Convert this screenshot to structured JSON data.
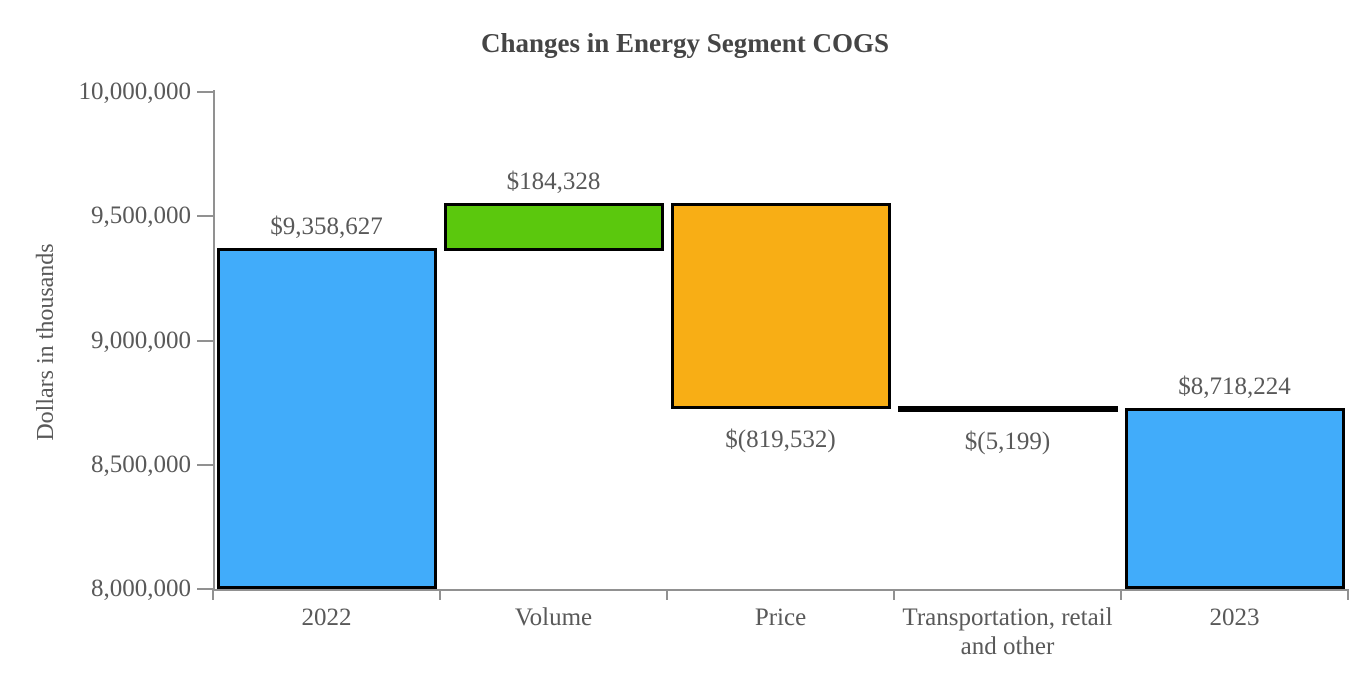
{
  "title": "Changes in Energy Segment COGS",
  "y_axis": {
    "label": "Dollars in thousands",
    "ticks": [
      "10,000,000",
      "9,500,000",
      "9,000,000",
      "8,500,000",
      "8,000,000"
    ],
    "min": 8000000,
    "max": 10000000
  },
  "x_axis": {
    "labels": [
      "2022",
      "Volume",
      "Price",
      "Transportation, retail\nand other",
      "2023"
    ]
  },
  "colors": {
    "total_bar": "#41ACFA",
    "increase_bar": "#5BC80D",
    "decrease_bar": "#F8AE15",
    "tiny_decrease_bar": "#000000",
    "bar_border": "#000000",
    "axis": "#919191",
    "label_text": "#595959",
    "title_text": "#454545"
  },
  "chart_data": {
    "type": "bar",
    "subtype": "waterfall",
    "title": "Changes in Energy Segment COGS",
    "xlabel": "",
    "ylabel": "Dollars in thousands",
    "ylim": [
      8000000,
      10000000
    ],
    "grid": false,
    "legend": false,
    "categories": [
      "2022",
      "Volume",
      "Price",
      "Transportation, retail and other",
      "2023"
    ],
    "values": [
      9358627,
      184328,
      -819532,
      -5199,
      8718224
    ],
    "bars": [
      {
        "category": "2022",
        "label": "$9,358,627",
        "value": 9358627,
        "start": 8000000,
        "end": 9358627,
        "color": "#41ACFA",
        "label_position": "above"
      },
      {
        "category": "Volume",
        "label": "$184,328",
        "value": 184328,
        "start": 9358627,
        "end": 9542955,
        "color": "#5BC80D",
        "label_position": "above"
      },
      {
        "category": "Price",
        "label": "$(819,532)",
        "value": -819532,
        "start": 9542955,
        "end": 8723423,
        "color": "#F8AE15",
        "label_position": "below"
      },
      {
        "category": "Transportation, retail and other",
        "label": "$(5,199)",
        "value": -5199,
        "start": 8723423,
        "end": 8718224,
        "color": "#000000",
        "label_position": "below"
      },
      {
        "category": "2023",
        "label": "$8,718,224",
        "value": 8718224,
        "start": 8000000,
        "end": 8718224,
        "color": "#41ACFA",
        "label_position": "above"
      }
    ]
  }
}
